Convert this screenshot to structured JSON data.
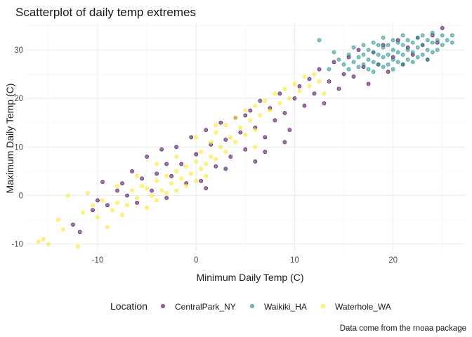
{
  "chart_data": {
    "type": "scatter",
    "title": "Scatterplot of daily temp extremes",
    "xlabel": "Minimum Daily Temp (C)",
    "ylabel": "Maximum Daily Temp (C)",
    "caption": "Data come from the rnoaa package",
    "xlim": [
      -17.2,
      27.3
    ],
    "ylim": [
      -11.5,
      35.5
    ],
    "x_ticks": [
      -10,
      0,
      10,
      20
    ],
    "y_ticks": [
      -10,
      0,
      10,
      20,
      30
    ],
    "grid": true,
    "legend": {
      "title": "Location",
      "position": "bottom"
    },
    "series": [
      {
        "name": "CentralPark_NY",
        "color": "#440154",
        "points": [
          [
            -12.5,
            -6.0
          ],
          [
            -11.8,
            -7.5
          ],
          [
            -10.5,
            -3.0
          ],
          [
            -10.0,
            -1.0
          ],
          [
            -9.5,
            2.8
          ],
          [
            -9.0,
            -2.0
          ],
          [
            -8.0,
            1.0
          ],
          [
            -7.5,
            2.5
          ],
          [
            -7.0,
            0.0
          ],
          [
            -6.5,
            5.0
          ],
          [
            -6.0,
            -1.5
          ],
          [
            -5.5,
            3.5
          ],
          [
            -5.0,
            8.0
          ],
          [
            -4.5,
            1.0
          ],
          [
            -4.0,
            4.5
          ],
          [
            -3.5,
            9.5
          ],
          [
            -3.0,
            -0.5
          ],
          [
            -2.5,
            4.0
          ],
          [
            -2.0,
            10.0
          ],
          [
            -1.5,
            6.5
          ],
          [
            -1.0,
            2.5
          ],
          [
            -0.5,
            12.0
          ],
          [
            0.0,
            8.5
          ],
          [
            0.5,
            3.0
          ],
          [
            1.0,
            13.5
          ],
          [
            1.5,
            10.5
          ],
          [
            2.0,
            6.0
          ],
          [
            2.5,
            15.0
          ],
          [
            3.0,
            11.5
          ],
          [
            3.5,
            8.0
          ],
          [
            4.0,
            16.0
          ],
          [
            4.5,
            13.0
          ],
          [
            5.0,
            9.5
          ],
          [
            5.5,
            17.5
          ],
          [
            6.0,
            14.0
          ],
          [
            6.5,
            19.5
          ],
          [
            7.0,
            12.0
          ],
          [
            7.5,
            18.0
          ],
          [
            8.0,
            15.5
          ],
          [
            8.5,
            21.0
          ],
          [
            9.0,
            17.0
          ],
          [
            9.5,
            13.5
          ],
          [
            10.0,
            20.0
          ],
          [
            10.5,
            22.5
          ],
          [
            11.0,
            18.5
          ],
          [
            11.5,
            24.0
          ],
          [
            12.0,
            21.0
          ],
          [
            12.5,
            26.0
          ],
          [
            13.0,
            19.0
          ],
          [
            13.5,
            23.5
          ],
          [
            14.0,
            27.5
          ],
          [
            14.5,
            22.0
          ],
          [
            15.0,
            25.0
          ],
          [
            15.5,
            28.5
          ],
          [
            16.0,
            24.5
          ],
          [
            16.5,
            30.0
          ],
          [
            17.0,
            26.5
          ],
          [
            17.5,
            23.0
          ],
          [
            18.0,
            29.5
          ],
          [
            18.5,
            27.0
          ],
          [
            19.0,
            31.0
          ],
          [
            19.5,
            25.5
          ],
          [
            20.0,
            28.5
          ],
          [
            20.5,
            32.0
          ],
          [
            21.0,
            27.0
          ],
          [
            21.5,
            30.5
          ],
          [
            22.0,
            29.0
          ],
          [
            22.5,
            32.5
          ],
          [
            23.0,
            31.0
          ],
          [
            23.5,
            28.0
          ],
          [
            24.0,
            33.0
          ],
          [
            24.5,
            31.5
          ],
          [
            25.0,
            34.5
          ],
          [
            3.0,
            5.5
          ],
          [
            5.0,
            16.5
          ],
          [
            7.0,
            9.0
          ],
          [
            9.0,
            11.0
          ],
          [
            -3.0,
            6.5
          ],
          [
            1.0,
            1.5
          ],
          [
            6.0,
            7.0
          ]
        ]
      },
      {
        "name": "Waikiki_HA",
        "color": "#21908C",
        "points": [
          [
            12.5,
            32.0
          ],
          [
            14.5,
            28.0
          ],
          [
            15.0,
            27.0
          ],
          [
            15.5,
            26.0
          ],
          [
            15.5,
            29.0
          ],
          [
            16.0,
            27.5
          ],
          [
            16.0,
            30.5
          ],
          [
            16.5,
            26.5
          ],
          [
            16.5,
            28.5
          ],
          [
            17.0,
            27.0
          ],
          [
            17.0,
            29.0
          ],
          [
            17.0,
            31.0
          ],
          [
            17.5,
            26.0
          ],
          [
            17.5,
            28.0
          ],
          [
            17.5,
            30.0
          ],
          [
            18.0,
            25.5
          ],
          [
            18.0,
            27.5
          ],
          [
            18.0,
            29.5
          ],
          [
            18.0,
            31.5
          ],
          [
            18.5,
            27.0
          ],
          [
            18.5,
            29.0
          ],
          [
            18.5,
            31.0
          ],
          [
            19.0,
            26.5
          ],
          [
            19.0,
            28.5
          ],
          [
            19.0,
            30.5
          ],
          [
            19.0,
            32.5
          ],
          [
            19.5,
            27.0
          ],
          [
            19.5,
            29.0
          ],
          [
            19.5,
            31.0
          ],
          [
            20.0,
            26.0
          ],
          [
            20.0,
            28.0
          ],
          [
            20.0,
            30.0
          ],
          [
            20.0,
            32.0
          ],
          [
            20.5,
            27.5
          ],
          [
            20.5,
            29.5
          ],
          [
            20.5,
            31.5
          ],
          [
            21.0,
            27.0
          ],
          [
            21.0,
            29.0
          ],
          [
            21.0,
            31.0
          ],
          [
            21.0,
            33.0
          ],
          [
            21.5,
            28.0
          ],
          [
            21.5,
            30.0
          ],
          [
            21.5,
            32.0
          ],
          [
            22.0,
            27.5
          ],
          [
            22.0,
            29.5
          ],
          [
            22.0,
            31.5
          ],
          [
            22.5,
            28.5
          ],
          [
            22.5,
            30.5
          ],
          [
            22.5,
            32.5
          ],
          [
            23.0,
            29.0
          ],
          [
            23.0,
            31.0
          ],
          [
            23.0,
            33.0
          ],
          [
            23.5,
            28.0
          ],
          [
            23.5,
            30.0
          ],
          [
            23.5,
            32.0
          ],
          [
            24.0,
            29.5
          ],
          [
            24.0,
            31.5
          ],
          [
            24.0,
            33.5
          ],
          [
            24.5,
            30.0
          ],
          [
            24.5,
            32.0
          ],
          [
            25.0,
            31.0
          ],
          [
            25.0,
            33.0
          ],
          [
            25.5,
            32.0
          ],
          [
            26.0,
            31.5
          ],
          [
            26.0,
            33.0
          ],
          [
            13.5,
            26.0
          ],
          [
            14.0,
            29.5
          ]
        ]
      },
      {
        "name": "Waterhole_WA",
        "color": "#FDE725",
        "points": [
          [
            -16.0,
            -9.5
          ],
          [
            -15.5,
            -9.0
          ],
          [
            -15.0,
            -10.0
          ],
          [
            -14.0,
            -5.0
          ],
          [
            -13.5,
            -7.0
          ],
          [
            -13.0,
            0.0
          ],
          [
            -12.0,
            -10.5
          ],
          [
            -11.5,
            -3.5
          ],
          [
            -11.0,
            0.5
          ],
          [
            -10.5,
            -2.0
          ],
          [
            -10.0,
            -4.5
          ],
          [
            -9.5,
            -1.0
          ],
          [
            -9.0,
            -6.5
          ],
          [
            -8.5,
            -3.0
          ],
          [
            -8.0,
            -1.5
          ],
          [
            -7.5,
            -4.0
          ],
          [
            -7.0,
            -2.0
          ],
          [
            -6.5,
            1.0
          ],
          [
            -6.0,
            -0.5
          ],
          [
            -5.5,
            2.0
          ],
          [
            -5.0,
            -2.5
          ],
          [
            -5.0,
            1.5
          ],
          [
            -4.5,
            0.0
          ],
          [
            -4.0,
            3.0
          ],
          [
            -4.0,
            -1.0
          ],
          [
            -3.5,
            1.0
          ],
          [
            -3.0,
            4.0
          ],
          [
            -3.0,
            0.5
          ],
          [
            -2.5,
            2.5
          ],
          [
            -2.0,
            5.0
          ],
          [
            -2.0,
            1.0
          ],
          [
            -1.5,
            3.5
          ],
          [
            -1.0,
            6.0
          ],
          [
            -1.0,
            2.0
          ],
          [
            -0.5,
            4.5
          ],
          [
            0.0,
            7.0
          ],
          [
            0.0,
            3.0
          ],
          [
            0.5,
            5.5
          ],
          [
            0.5,
            9.0
          ],
          [
            1.0,
            6.5
          ],
          [
            1.0,
            4.0
          ],
          [
            1.5,
            8.0
          ],
          [
            1.5,
            11.0
          ],
          [
            2.0,
            7.5
          ],
          [
            2.0,
            13.0
          ],
          [
            2.5,
            10.0
          ],
          [
            3.0,
            14.5
          ],
          [
            3.0,
            9.0
          ],
          [
            3.5,
            12.0
          ],
          [
            4.0,
            16.0
          ],
          [
            4.0,
            11.0
          ],
          [
            4.5,
            14.0
          ],
          [
            5.0,
            17.5
          ],
          [
            5.0,
            12.5
          ],
          [
            5.5,
            15.5
          ],
          [
            6.0,
            18.5
          ],
          [
            6.0,
            13.5
          ],
          [
            6.5,
            16.5
          ],
          [
            7.0,
            19.5
          ],
          [
            7.5,
            17.5
          ],
          [
            8.0,
            21.0
          ],
          [
            8.5,
            19.0
          ],
          [
            9.0,
            22.0
          ],
          [
            9.5,
            20.0
          ],
          [
            10.0,
            23.0
          ],
          [
            10.5,
            21.5
          ],
          [
            11.0,
            24.5
          ],
          [
            11.5,
            22.5
          ],
          [
            12.0,
            25.0
          ],
          [
            12.5,
            23.5
          ],
          [
            13.0,
            21.0
          ],
          [
            -6.0,
            4.0
          ],
          [
            -2.0,
            8.0
          ],
          [
            0.0,
            12.0
          ],
          [
            2.0,
            14.5
          ],
          [
            -4.0,
            6.5
          ],
          [
            -8.0,
            2.0
          ],
          [
            6.0,
            10.0
          ]
        ]
      }
    ]
  }
}
